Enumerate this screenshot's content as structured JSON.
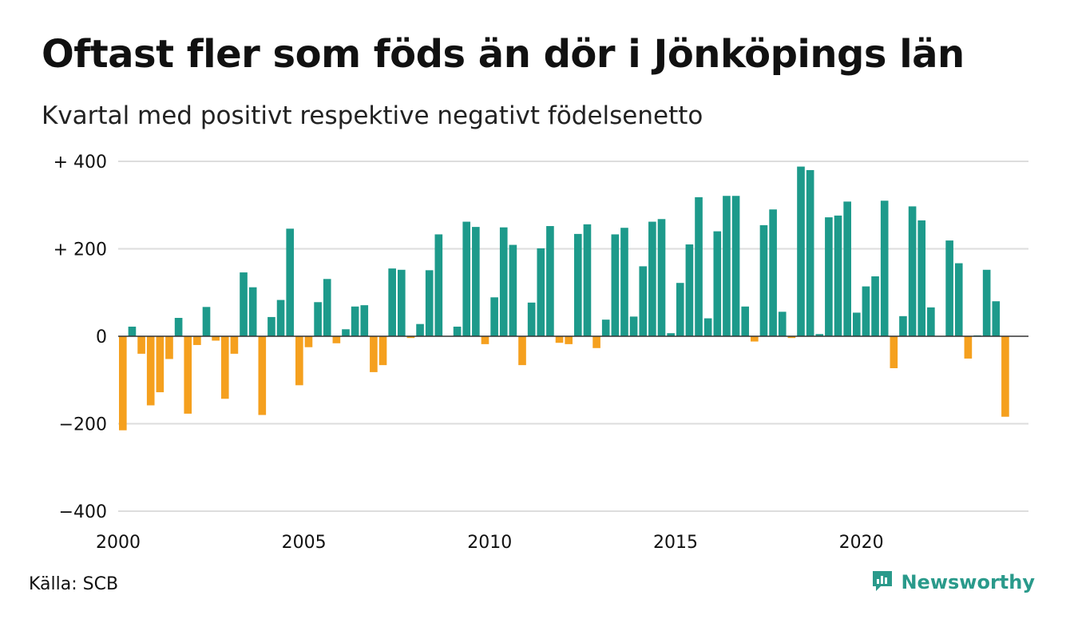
{
  "title": "Oftast fler som föds än dör i Jönköpings län",
  "subtitle": "Kvartal med positivt respektive negativt födelsenetto",
  "source": "Källa: SCB",
  "brand": {
    "name": "Newsworthy",
    "icon": "newsworthy-logo-icon"
  },
  "colors": {
    "positive": "#1d9a8b",
    "negative": "#f5a01e",
    "grid": "#dddddd",
    "axis": "#333333"
  },
  "chart_data": {
    "type": "bar",
    "title": "Oftast fler som föds än dör i Jönköpings län",
    "subtitle": "Kvartal med positivt respektive negativt födelsenetto",
    "xlabel": "",
    "ylabel": "",
    "xlim": [
      2000,
      2024.5
    ],
    "ylim": [
      -400,
      400
    ],
    "grid": true,
    "y_ticks": [
      {
        "value": 400,
        "label": "+ 400"
      },
      {
        "value": 200,
        "label": "+ 200"
      },
      {
        "value": 0,
        "label": "0"
      },
      {
        "value": -200,
        "label": "−200"
      },
      {
        "value": -400,
        "label": "−400"
      }
    ],
    "x_ticks": [
      {
        "value": 2000,
        "label": "2000"
      },
      {
        "value": 2005,
        "label": "2005"
      },
      {
        "value": 2010,
        "label": "2010"
      },
      {
        "value": 2015,
        "label": "2015"
      },
      {
        "value": 2020,
        "label": "2020"
      }
    ],
    "quarters": [
      "2000 Q1",
      "2000 Q2",
      "2000 Q3",
      "2000 Q4",
      "2001 Q1",
      "2001 Q2",
      "2001 Q3",
      "2001 Q4",
      "2002 Q1",
      "2002 Q2",
      "2002 Q3",
      "2002 Q4",
      "2003 Q1",
      "2003 Q2",
      "2003 Q3",
      "2003 Q4",
      "2004 Q1",
      "2004 Q2",
      "2004 Q3",
      "2004 Q4",
      "2005 Q1",
      "2005 Q2",
      "2005 Q3",
      "2005 Q4",
      "2006 Q1",
      "2006 Q2",
      "2006 Q3",
      "2006 Q4",
      "2007 Q1",
      "2007 Q2",
      "2007 Q3",
      "2007 Q4",
      "2008 Q1",
      "2008 Q2",
      "2008 Q3",
      "2008 Q4",
      "2009 Q1",
      "2009 Q2",
      "2009 Q3",
      "2009 Q4",
      "2010 Q1",
      "2010 Q2",
      "2010 Q3",
      "2010 Q4",
      "2011 Q1",
      "2011 Q2",
      "2011 Q3",
      "2011 Q4",
      "2012 Q1",
      "2012 Q2",
      "2012 Q3",
      "2012 Q4",
      "2013 Q1",
      "2013 Q2",
      "2013 Q3",
      "2013 Q4",
      "2014 Q1",
      "2014 Q2",
      "2014 Q3",
      "2014 Q4",
      "2015 Q1",
      "2015 Q2",
      "2015 Q3",
      "2015 Q4",
      "2016 Q1",
      "2016 Q2",
      "2016 Q3",
      "2016 Q4",
      "2017 Q1",
      "2017 Q2",
      "2017 Q3",
      "2017 Q4",
      "2018 Q1",
      "2018 Q2",
      "2018 Q3",
      "2018 Q4",
      "2019 Q1",
      "2019 Q2",
      "2019 Q3",
      "2019 Q4",
      "2020 Q1",
      "2020 Q2",
      "2020 Q3",
      "2020 Q4",
      "2021 Q1",
      "2021 Q2",
      "2021 Q3",
      "2021 Q4",
      "2022 Q1",
      "2022 Q2",
      "2022 Q3",
      "2022 Q4",
      "2023 Q1",
      "2023 Q2",
      "2023 Q3",
      "2023 Q4",
      "2024 Q1"
    ],
    "values": [
      -215,
      22,
      -40,
      -158,
      -128,
      -52,
      42,
      -177,
      -20,
      67,
      -10,
      -143,
      -40,
      146,
      112,
      -180,
      44,
      83,
      246,
      -112,
      -25,
      78,
      131,
      -16,
      16,
      68,
      71,
      -82,
      -66,
      155,
      152,
      -4,
      28,
      151,
      233,
      0,
      22,
      262,
      250,
      -18,
      89,
      249,
      209,
      -66,
      77,
      201,
      252,
      -15,
      -18,
      234,
      256,
      -27,
      38,
      233,
      248,
      45,
      160,
      262,
      268,
      7,
      122,
      210,
      318,
      41,
      240,
      321,
      321,
      68,
      -12,
      254,
      290,
      56,
      -4,
      388,
      380,
      5,
      272,
      276,
      308,
      54,
      114,
      137,
      310,
      -73,
      46,
      297,
      265,
      66,
      0,
      219,
      167,
      -51,
      2,
      152,
      80,
      -184,
      0
    ]
  }
}
